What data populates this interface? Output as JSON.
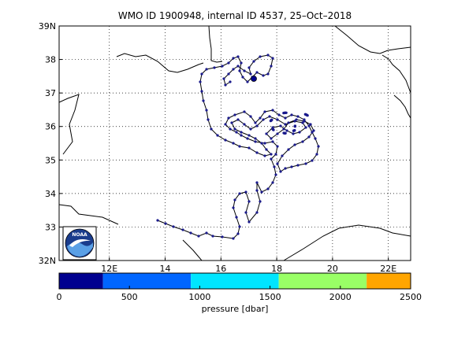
{
  "title": "WMO ID 1900948, internal ID 4537, 25–Oct–2018",
  "map": {
    "lat_ticks": [
      {
        "value": 39,
        "label": "39N"
      },
      {
        "value": 38,
        "label": "38"
      },
      {
        "value": 37,
        "label": "37"
      },
      {
        "value": 36,
        "label": "36"
      },
      {
        "value": 35,
        "label": "35"
      },
      {
        "value": 34,
        "label": "34"
      },
      {
        "value": 33,
        "label": "33"
      },
      {
        "value": 32,
        "label": "32N"
      }
    ],
    "lon_ticks": [
      {
        "value": 12,
        "label": "12E"
      },
      {
        "value": 14,
        "label": "14"
      },
      {
        "value": 16,
        "label": "16"
      },
      {
        "value": 18,
        "label": "18"
      },
      {
        "value": 20,
        "label": "20"
      },
      {
        "value": 22,
        "label": "22E"
      }
    ],
    "lon_range": [
      10.2,
      22.8
    ],
    "lat_range": [
      32,
      39
    ],
    "grid": true,
    "coastline_color": "#000000",
    "track_color": "#000000",
    "float_color": "#1a1a8c"
  },
  "colorbar": {
    "label": "pressure [dbar]",
    "range": [
      0,
      2500
    ],
    "ticks": [
      "0",
      "500",
      "1000",
      "1500",
      "2000",
      "2500"
    ],
    "bands": [
      {
        "from": 0,
        "to": 312,
        "color": "#00008f"
      },
      {
        "from": 312,
        "to": 937,
        "color": "#0066ff"
      },
      {
        "from": 937,
        "to": 1562,
        "color": "#00e5ff"
      },
      {
        "from": 1562,
        "to": 2187,
        "color": "#99ff66"
      },
      {
        "from": 2187,
        "to": 2500,
        "color": "#ffa500"
      }
    ]
  },
  "logo": {
    "text": "NOAA"
  }
}
